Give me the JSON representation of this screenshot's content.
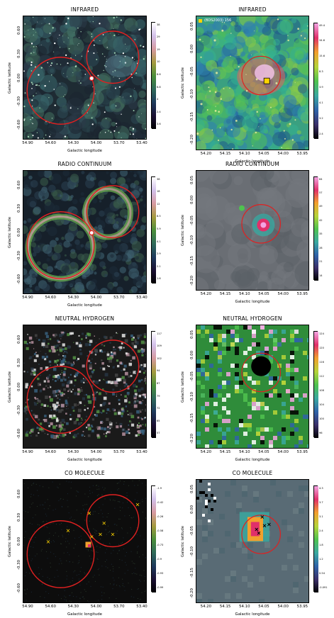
{
  "panels": [
    {
      "title": "INFRARED",
      "xlabel": "Galactic longitude",
      "ylabel": "Galactic latitude",
      "xticks": [
        "54.90",
        "54.60",
        "54.30",
        "54.00",
        "53.70",
        "53.40"
      ],
      "yticks": [
        "0.60",
        "0.30",
        "0.00",
        "-0.30",
        "-0.60"
      ],
      "cbticks": [
        "38",
        "29",
        "19",
        "10",
        "8.6",
        "6.8",
        "4",
        "2.4",
        "3.6"
      ],
      "cmap": "cubehelix"
    },
    {
      "title": "INFRARED",
      "xlabel": "Galactic longitude",
      "ylabel": "Galactic latitude",
      "xticks": [
        "54.20",
        "54.15",
        "54.10",
        "54.05",
        "54.00",
        "53.95"
      ],
      "yticks": [
        "0.05",
        "0.00",
        "-0.05",
        "-0.10",
        "-0.15",
        "-0.20"
      ],
      "cbticks": [
        "49.4",
        "34.6",
        "15.6",
        "8.3",
        "3.9",
        "4.1",
        "3.2",
        "2.4"
      ],
      "cmap": "spectral",
      "legend": "(BDS2003) 156"
    },
    {
      "title": "RADIO CONTINUUM",
      "xlabel": "Galactic longitude",
      "ylabel": "Galactic latitude",
      "xticks": [
        "54.90",
        "54.60",
        "54.30",
        "54.00",
        "53.70",
        "53.40"
      ],
      "yticks": [
        "0.60",
        "0.30",
        "0.00",
        "-0.30",
        "-0.60"
      ],
      "cbticks": [
        "38",
        "18",
        "12",
        "8.5",
        "5.9",
        "4.1",
        "2.9",
        "2.1",
        "1.6"
      ],
      "cmap": "cubehelix"
    },
    {
      "title": "RADIO CONTINUUM",
      "xlabel": "Galactic longitude",
      "ylabel": "Galactic latitude",
      "xticks": [
        "54.20",
        "54.15",
        "54.10",
        "54.05",
        "54.00",
        "53.95"
      ],
      "yticks": [
        "0.05",
        "0.00",
        "-0.05",
        "-0.10",
        "-0.15",
        "-0.20"
      ],
      "cbticks": [
        "64",
        "57",
        "49",
        "42",
        "35",
        "28",
        "21",
        "14"
      ],
      "cmap": "spectral"
    },
    {
      "title": "NEUTRAL HYDROGEN",
      "xlabel": "Galactic longitude",
      "ylabel": "Galactic latitude",
      "xticks": [
        "54.90",
        "54.60",
        "54.30",
        "54.00",
        "53.70",
        "53.40"
      ],
      "yticks": [
        "0.60",
        "0.30",
        "0.00",
        "-0.30",
        "-0.60"
      ],
      "cbticks": [
        "117",
        "109",
        "102",
        "94",
        "87",
        "79",
        "72",
        "65",
        "57"
      ],
      "cmap": "cubehelix"
    },
    {
      "title": "NEUTRAL HYDROGEN",
      "xlabel": "Galactic longitude",
      "ylabel": "Galactic latitude",
      "xticks": [
        "54.20",
        "54.15",
        "54.10",
        "54.05",
        "54.00",
        "53.95"
      ],
      "yticks": [
        "0.05",
        "0.00",
        "-0.05",
        "-0.10",
        "-0.15",
        "-0.20"
      ],
      "cbticks": [
        "124",
        "120",
        "116",
        "112",
        "108",
        "104",
        "100",
        "96"
      ],
      "cmap": "spectral"
    },
    {
      "title": "CO MOLECULE",
      "xlabel": "Galactic longitude",
      "ylabel": "Galactic latitude",
      "xticks": [
        "54.90",
        "54.60",
        "54.30",
        "54.00",
        "53.70",
        "53.40"
      ],
      "yticks": [
        "0.60",
        "0.30",
        "0.00",
        "-0.30",
        "-0.60"
      ],
      "cbticks": [
        "-1.9",
        "-0.42",
        "-0.26",
        "-0.58",
        "-0.73",
        "-0.9",
        "-0.93",
        "-0.99"
      ],
      "cmap": "cubehelix"
    },
    {
      "title": "CO MOLECULE",
      "xlabel": "Galactic longitude",
      "ylabel": "Galactic latitude",
      "xticks": [
        "54.20",
        "54.15",
        "54.10",
        "54.05",
        "54.00",
        "53.95"
      ],
      "yticks": [
        "0.05",
        "0.00",
        "-0.05",
        "-0.10",
        "-0.15",
        "-0.20"
      ],
      "cbticks": [
        "4.3",
        "3.7",
        "3.1",
        "2.4",
        "1.8",
        "1.2",
        "0.54",
        "-0.091"
      ],
      "cmap": "spectral"
    }
  ],
  "colors": {
    "circle": "#e02020",
    "marker": "#ffd400"
  }
}
